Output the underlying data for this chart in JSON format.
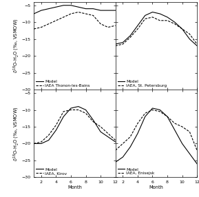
{
  "months": [
    1,
    2,
    3,
    4,
    5,
    6,
    7,
    8,
    9,
    10,
    11,
    12
  ],
  "panels": [
    {
      "legend_model": "Model",
      "legend_iaea": "IAEA Thonon-les-Bains",
      "model": [
        -7.5,
        -6.5,
        -6.0,
        -5.5,
        -5.0,
        -5.0,
        -5.5,
        -6.0,
        -6.0,
        -6.5,
        -6.5,
        -6.5
      ],
      "iaea": [
        -12.0,
        -11.5,
        -10.5,
        -9.5,
        -8.5,
        -7.5,
        -7.0,
        -7.5,
        -8.0,
        -10.5,
        -11.5,
        -11.0
      ],
      "ylim": [
        -30,
        -4
      ],
      "yticks": [
        -5,
        -10,
        -15,
        -20,
        -25,
        -30
      ]
    },
    {
      "legend_model": "Model",
      "legend_iaea": "IAEA, St. Petersburg",
      "model": [
        -16.5,
        -16.0,
        -14.0,
        -11.0,
        -8.0,
        -7.0,
        -7.5,
        -8.5,
        -10.0,
        -12.0,
        -15.0,
        -17.0
      ],
      "iaea": [
        -17.0,
        -16.5,
        -14.5,
        -12.0,
        -9.0,
        -8.5,
        -9.5,
        -9.5,
        -10.5,
        -12.0,
        -13.5,
        -16.5
      ],
      "ylim": [
        -30,
        -4
      ],
      "yticks": [
        -5,
        -10,
        -15,
        -20,
        -25,
        -30
      ]
    },
    {
      "legend_model": "Model",
      "legend_iaea": "IAEA, Kirov",
      "model": [
        -20.0,
        -20.0,
        -19.0,
        -16.0,
        -12.0,
        -9.5,
        -9.0,
        -10.0,
        -13.0,
        -16.5,
        -18.0,
        -19.5
      ],
      "iaea": [
        -20.0,
        -19.5,
        -17.5,
        -14.5,
        -10.5,
        -10.0,
        -10.0,
        -11.0,
        -13.5,
        -15.0,
        -17.0,
        -19.0
      ],
      "ylim": [
        -30,
        -4
      ],
      "yticks": [
        -5,
        -10,
        -15,
        -20,
        -25,
        -30
      ]
    },
    {
      "legend_model": "Model",
      "legend_iaea": "IAEA, Enisejsk",
      "model": [
        -25.5,
        -24.0,
        -21.0,
        -17.0,
        -12.0,
        -9.5,
        -10.0,
        -12.0,
        -16.0,
        -20.0,
        -23.0,
        -26.0
      ],
      "iaea": [
        -22.0,
        -20.0,
        -18.0,
        -14.0,
        -11.0,
        -10.0,
        -10.5,
        -12.0,
        -14.0,
        -15.0,
        -16.5,
        -22.0
      ],
      "ylim": [
        -30,
        -4
      ],
      "yticks": [
        -5,
        -10,
        -15,
        -20,
        -25,
        -30
      ]
    }
  ],
  "ylabel": "$\\delta^{18}$O-H$_2$O (‰, VSMOW)",
  "xlabel": "Month",
  "line_color": "black",
  "model_linestyle": "-",
  "iaea_linestyle": "--",
  "linewidth": 0.8,
  "legend_fontsize": 4.2,
  "tick_fontsize": 4.5,
  "label_fontsize": 4.8,
  "xticks": [
    2,
    4,
    6,
    8,
    10,
    12
  ],
  "ytick_labels_left": [
    "-5",
    "-10",
    "-15",
    "-20",
    "-25",
    "-30"
  ]
}
